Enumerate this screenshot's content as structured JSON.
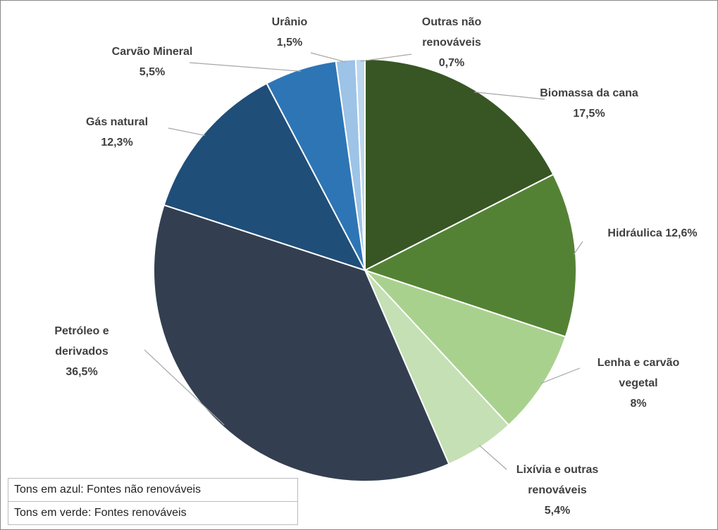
{
  "chart_data": {
    "type": "pie",
    "categories": [
      "Biomassa da cana",
      "Hidráulica",
      "Lenha e carvão vegetal",
      "Lixívia e outras renováveis",
      "Petróleo e derivados",
      "Gás natural",
      "Carvão Mineral",
      "Urânio",
      "Outras não renováveis"
    ],
    "values": [
      17.5,
      12.6,
      8,
      5.4,
      36.5,
      12.3,
      5.5,
      1.5,
      0.7
    ],
    "value_labels": [
      "17,5%",
      "12,6%",
      "8%",
      "5,4%",
      "36,5%",
      "12,3%",
      "5,5%",
      "1,5%",
      "0,7%"
    ],
    "colors": [
      "#375623",
      "#548235",
      "#a9d18e",
      "#c5e0b4",
      "#333f50",
      "#1f4e79",
      "#2e75b6",
      "#9dc3e6",
      "#bdd7ee"
    ],
    "annotations": [
      "Tons em azul: Fontes não renováveis",
      "Tons em verde: Fontes renováveis"
    ]
  }
}
